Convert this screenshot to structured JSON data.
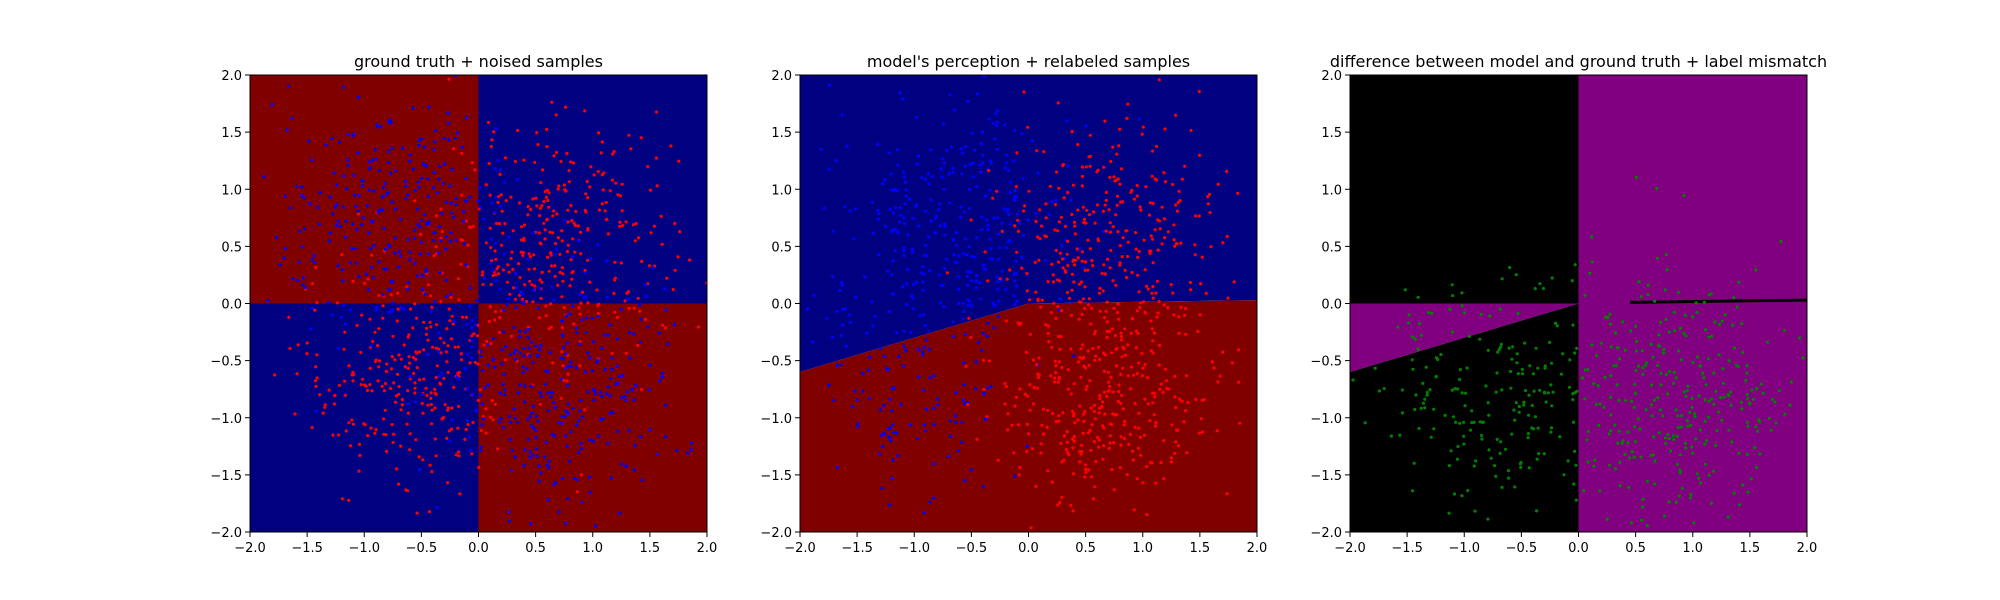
{
  "colors": {
    "dark_red": "#800000",
    "dark_blue": "#000080",
    "black": "#000000",
    "purple": "#800080",
    "point_red": "#ff0000",
    "point_blue": "#0000ff",
    "point_green": "#008000"
  },
  "chart_data": [
    {
      "type": "scatter",
      "title": "ground truth + noised samples",
      "xlim": [
        -2.0,
        2.0
      ],
      "ylim": [
        -2.0,
        2.0
      ],
      "xticks": [
        "−2.0",
        "−1.5",
        "−1.0",
        "−0.5",
        "0.0",
        "0.5",
        "1.0",
        "1.5",
        "2.0"
      ],
      "yticks": [
        "−2.0",
        "−1.5",
        "−1.0",
        "−0.5",
        "0.0",
        "0.5",
        "1.0",
        "1.5",
        "2.0"
      ],
      "background_regions": [
        {
          "x": [
            -2,
            0
          ],
          "y": [
            0,
            2
          ],
          "color": "dark_red"
        },
        {
          "x": [
            0,
            2
          ],
          "y": [
            0,
            2
          ],
          "color": "dark_blue"
        },
        {
          "x": [
            -2,
            0
          ],
          "y": [
            -2,
            0
          ],
          "color": "dark_blue"
        },
        {
          "x": [
            0,
            2
          ],
          "y": [
            -2,
            0
          ],
          "color": "dark_red"
        }
      ],
      "series": [
        {
          "color": "point_red",
          "clusters": [
            {
              "cx": 0.7,
              "cy": 0.6,
              "sd": 0.5,
              "n": 320
            },
            {
              "cx": -0.6,
              "cy": -0.6,
              "sd": 0.5,
              "n": 300
            }
          ]
        },
        {
          "color": "point_blue",
          "clusters": [
            {
              "cx": -0.7,
              "cy": 0.7,
              "sd": 0.55,
              "n": 300
            },
            {
              "cx": 0.7,
              "cy": -0.7,
              "sd": 0.55,
              "n": 320
            }
          ]
        }
      ]
    },
    {
      "type": "scatter",
      "title": "model's perception + relabeled samples",
      "xlim": [
        -2.0,
        2.0
      ],
      "ylim": [
        -2.0,
        2.0
      ],
      "xticks": [
        "−2.0",
        "−1.5",
        "−1.0",
        "−0.5",
        "0.0",
        "0.5",
        "1.0",
        "1.5",
        "2.0"
      ],
      "yticks": [
        "−2.0",
        "−1.5",
        "−1.0",
        "−0.5",
        "0.0",
        "0.5",
        "1.0",
        "1.5",
        "2.0"
      ],
      "boundary": [
        [
          -2.0,
          -0.6
        ],
        [
          0.0,
          0.0
        ],
        [
          2.0,
          0.03
        ]
      ],
      "above_color": "dark_blue",
      "below_color": "dark_red",
      "series": [
        {
          "color": "point_blue",
          "clusters": [
            {
              "cx": -0.7,
              "cy": 0.7,
              "sd": 0.55,
              "n": 320
            },
            {
              "cx": -1.0,
              "cy": -0.8,
              "sd": 0.45,
              "n": 120
            }
          ]
        },
        {
          "color": "point_red",
          "clusters": [
            {
              "cx": 0.7,
              "cy": 0.6,
              "sd": 0.5,
              "n": 300
            },
            {
              "cx": 0.7,
              "cy": -0.8,
              "sd": 0.5,
              "n": 360
            }
          ]
        }
      ]
    },
    {
      "type": "scatter",
      "title": "difference between model and ground truth + label mismatch",
      "xlim": [
        -2.0,
        2.0
      ],
      "ylim": [
        -2.0,
        2.0
      ],
      "xticks": [
        "−2.0",
        "−1.5",
        "−1.0",
        "−0.5",
        "0.0",
        "0.5",
        "1.0",
        "1.5",
        "2.0"
      ],
      "yticks": [
        "−2.0",
        "−1.5",
        "−1.0",
        "−0.5",
        "0.0",
        "0.5",
        "1.0",
        "1.5",
        "2.0"
      ],
      "regions": [
        {
          "polygon": [
            [
              -2,
              0
            ],
            [
              0,
              0
            ],
            [
              0,
              2
            ],
            [
              -2,
              2
            ]
          ],
          "color": "black"
        },
        {
          "polygon": [
            [
              0,
              -2
            ],
            [
              2,
              -2
            ],
            [
              2,
              2
            ],
            [
              0,
              2
            ]
          ],
          "color": "purple"
        },
        {
          "polygon": [
            [
              -2,
              0
            ],
            [
              0,
              0
            ],
            [
              -2,
              -0.6
            ]
          ],
          "color": "purple"
        },
        {
          "polygon": [
            [
              -2,
              -0.6
            ],
            [
              0,
              0
            ],
            [
              0,
              -2
            ],
            [
              -2,
              -2
            ]
          ],
          "color": "black"
        }
      ],
      "mismatch_line": {
        "x": [
          0.45,
          2.0
        ],
        "y": [
          0.01,
          0.03
        ],
        "color": "black"
      },
      "series": [
        {
          "color": "point_green",
          "clusters": [
            {
              "cx": -0.8,
              "cy": -0.8,
              "sd": 0.5,
              "n": 180
            },
            {
              "cx": 0.8,
              "cy": -0.8,
              "sd": 0.55,
              "n": 330
            }
          ]
        }
      ]
    }
  ]
}
